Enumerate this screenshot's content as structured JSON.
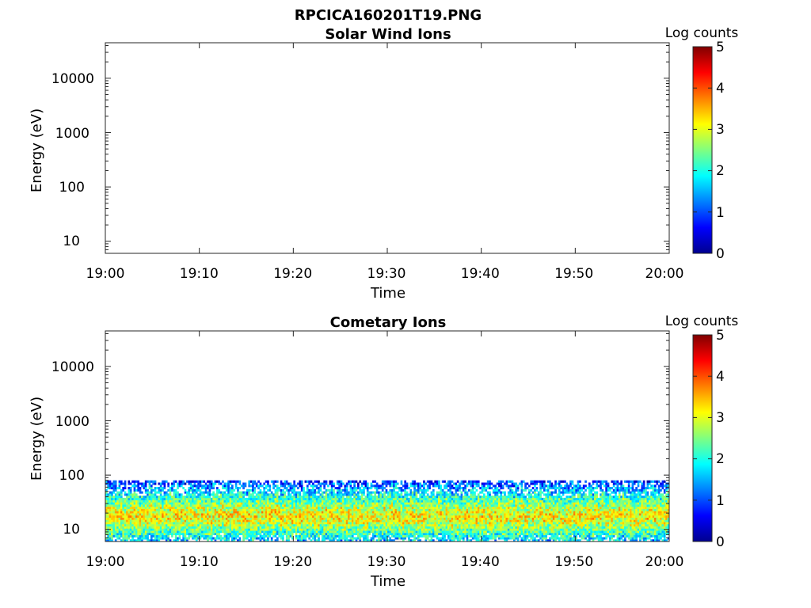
{
  "figure": {
    "title": "RPCICA160201T19.PNG"
  },
  "colormap": {
    "name": "jet",
    "stops": [
      "#00008f",
      "#0000ff",
      "#0080ff",
      "#00ffff",
      "#80ff80",
      "#ffff00",
      "#ff8000",
      "#ff0000",
      "#800000"
    ]
  },
  "chart_data": [
    {
      "type": "heatmap",
      "title": "Solar Wind Ions",
      "xlabel": "Time",
      "ylabel": "Energy (eV)",
      "x_tick_labels": [
        "19:00",
        "19:10",
        "19:20",
        "19:30",
        "19:40",
        "19:50",
        "20:00"
      ],
      "x_range": [
        "19:00",
        "20:00"
      ],
      "y_scale": "log",
      "y_ticks": [
        10,
        100,
        1000,
        10000
      ],
      "y_tick_labels": [
        "10",
        "100",
        "1000",
        "10000"
      ],
      "y_range": [
        6,
        45000
      ],
      "colorbar": {
        "label": "Log counts",
        "range": [
          0,
          5
        ],
        "tick_labels": [
          "0",
          "1",
          "2",
          "3",
          "4",
          "5"
        ]
      },
      "bands": []
    },
    {
      "type": "heatmap",
      "title": "Cometary Ions",
      "xlabel": "Time",
      "ylabel": "Energy (eV)",
      "x_tick_labels": [
        "19:00",
        "19:10",
        "19:20",
        "19:30",
        "19:40",
        "19:50",
        "20:00"
      ],
      "x_range": [
        "19:00",
        "20:00"
      ],
      "y_scale": "log",
      "y_ticks": [
        10,
        100,
        1000,
        10000
      ],
      "y_tick_labels": [
        "10",
        "100",
        "1000",
        "10000"
      ],
      "y_range": [
        6,
        45000
      ],
      "colorbar": {
        "label": "Log counts",
        "range": [
          0,
          5
        ],
        "tick_labels": [
          "0",
          "1",
          "2",
          "3",
          "4",
          "5"
        ]
      },
      "bands": [
        {
          "energy_min": 6,
          "energy_max": 80,
          "peak_energy": 18,
          "peak_log_counts": 3.2,
          "edge_log_counts": 0.8
        }
      ]
    }
  ]
}
